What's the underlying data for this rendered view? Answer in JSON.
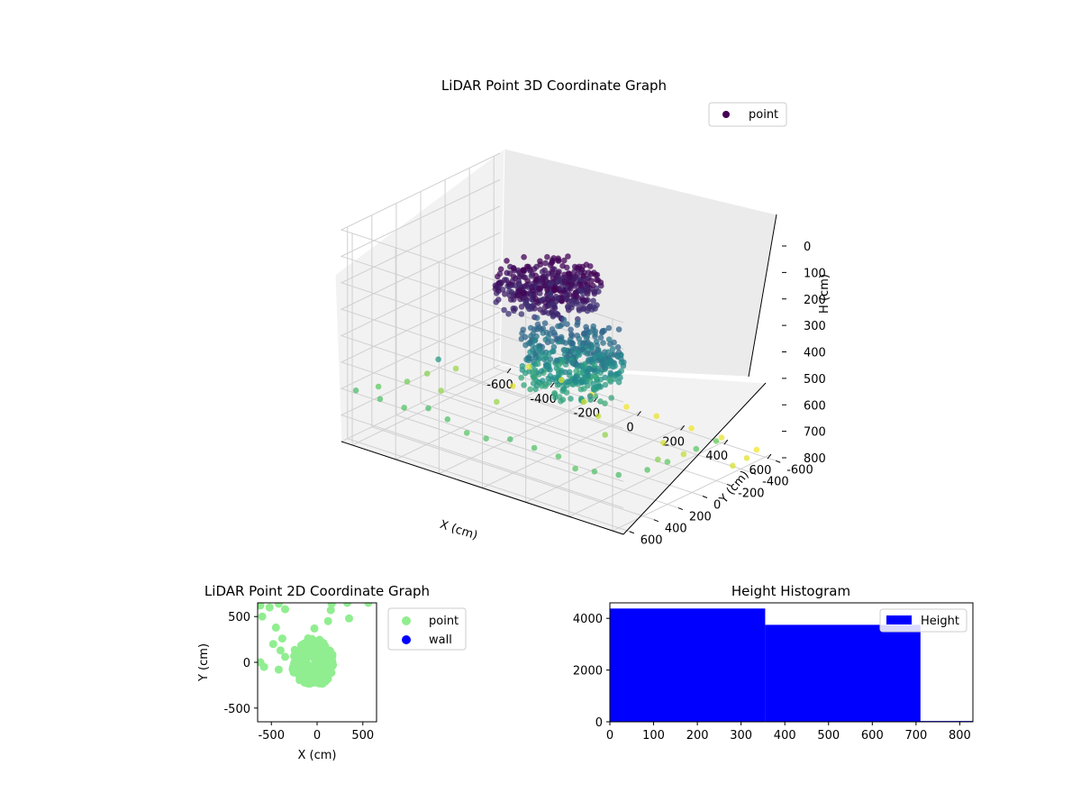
{
  "colors": {
    "viridis_purple": "#440154",
    "point_green": "#90ee90",
    "wall_blue": "#0000ff",
    "hist_blue": "#0000ff",
    "pane": "#f2f2f2",
    "grid": "#d0d0d0"
  },
  "chart_data": [
    {
      "type": "scatter",
      "title": "LiDAR Point 3D Coordinate Graph",
      "xlabel": "X (cm)",
      "ylabel": "Y (cm)",
      "zlabel": "H (cm)",
      "xlim": [
        -650,
        650
      ],
      "ylim": [
        -650,
        650
      ],
      "zlim": [
        800,
        0
      ],
      "x_ticks": [
        -600,
        -400,
        -200,
        0,
        200,
        400,
        600
      ],
      "y_ticks": [
        -600,
        -400,
        -200,
        0,
        200,
        400,
        600
      ],
      "z_ticks": [
        0,
        100,
        200,
        300,
        400,
        500,
        600,
        700,
        800
      ],
      "colormap": "viridis",
      "grid": true,
      "legend": {
        "position": "top-right",
        "entries": [
          "point"
        ]
      },
      "series": [
        {
          "name": "point",
          "clusters": [
            {
              "x": [
                -250,
                150
              ],
              "y": [
                -250,
                300
              ],
              "h": [
                150,
                250
              ]
            },
            {
              "x": [
                -150,
                250
              ],
              "y": [
                -250,
                250
              ],
              "h": [
                350,
                550
              ]
            }
          ],
          "scattered_points": [
            {
              "x": -600,
              "y": 620,
              "h": 600
            },
            {
              "x": -500,
              "y": 600,
              "h": 610
            },
            {
              "x": -400,
              "y": 580,
              "h": 620
            },
            {
              "x": -300,
              "y": 560,
              "h": 600
            },
            {
              "x": -200,
              "y": 580,
              "h": 610
            },
            {
              "x": -100,
              "y": 600,
              "h": 630
            },
            {
              "x": 0,
              "y": 620,
              "h": 620
            },
            {
              "x": 100,
              "y": 600,
              "h": 600
            },
            {
              "x": 200,
              "y": 580,
              "h": 610
            },
            {
              "x": 300,
              "y": 560,
              "h": 620
            },
            {
              "x": 400,
              "y": 600,
              "h": 630
            },
            {
              "x": 500,
              "y": 620,
              "h": 610
            },
            {
              "x": 600,
              "y": 600,
              "h": 600
            },
            {
              "x": 620,
              "y": 400,
              "h": 620
            },
            {
              "x": 600,
              "y": 200,
              "h": 640
            },
            {
              "x": 620,
              "y": 0,
              "h": 630
            },
            {
              "x": 600,
              "y": -200,
              "h": 650
            },
            {
              "x": -620,
              "y": 400,
              "h": 640
            },
            {
              "x": -600,
              "y": 200,
              "h": 660
            },
            {
              "x": -620,
              "y": 0,
              "h": 680
            },
            {
              "x": -600,
              "y": -200,
              "h": 700
            },
            {
              "x": -500,
              "y": -620,
              "h": 760
            },
            {
              "x": -350,
              "y": -620,
              "h": 770
            },
            {
              "x": -200,
              "y": -600,
              "h": 780
            },
            {
              "x": -50,
              "y": -620,
              "h": 790
            },
            {
              "x": 100,
              "y": -600,
              "h": 780
            },
            {
              "x": 250,
              "y": -620,
              "h": 790
            },
            {
              "x": 400,
              "y": -600,
              "h": 780
            },
            {
              "x": 550,
              "y": -620,
              "h": 790
            },
            {
              "x": 600,
              "y": -450,
              "h": 770
            },
            {
              "x": 620,
              "y": -300,
              "h": 760
            },
            {
              "x": -400,
              "y": 300,
              "h": 500
            },
            {
              "x": 300,
              "y": 300,
              "h": 450
            },
            {
              "x": -300,
              "y": 0,
              "h": 700
            },
            {
              "x": 200,
              "y": 0,
              "h": 690
            },
            {
              "x": 0,
              "y": -300,
              "h": 740
            },
            {
              "x": -150,
              "y": -450,
              "h": 760
            },
            {
              "x": 300,
              "y": -300,
              "h": 760
            },
            {
              "x": 450,
              "y": -200,
              "h": 740
            },
            {
              "x": -450,
              "y": -400,
              "h": 770
            },
            {
              "x": 500,
              "y": 100,
              "h": 680
            },
            {
              "x": -500,
              "y": 100,
              "h": 690
            }
          ]
        }
      ]
    },
    {
      "type": "scatter",
      "title": "LiDAR Point 2D Coordinate Graph",
      "xlabel": "X (cm)",
      "ylabel": "Y (cm)",
      "xlim": [
        -650,
        650
      ],
      "ylim": [
        -650,
        650
      ],
      "x_ticks": [
        -500,
        0,
        500
      ],
      "y_ticks": [
        -500,
        0,
        500
      ],
      "legend": {
        "position": "outside-right",
        "entries": [
          "point",
          "wall"
        ]
      },
      "series": [
        {
          "name": "point",
          "cluster": {
            "cx": -50,
            "cy": 0,
            "rx": 230,
            "ry": 270
          },
          "points": [
            {
              "x": -620,
              "y": 620
            },
            {
              "x": -520,
              "y": 600
            },
            {
              "x": -420,
              "y": 640
            },
            {
              "x": -350,
              "y": 580
            },
            {
              "x": -600,
              "y": 500
            },
            {
              "x": -450,
              "y": 380
            },
            {
              "x": -380,
              "y": 260
            },
            {
              "x": -480,
              "y": 200
            },
            {
              "x": -400,
              "y": 130
            },
            {
              "x": -350,
              "y": 60
            },
            {
              "x": -620,
              "y": 0
            },
            {
              "x": -580,
              "y": -50
            },
            {
              "x": -420,
              "y": -80
            },
            {
              "x": -30,
              "y": 370
            },
            {
              "x": 150,
              "y": 570
            },
            {
              "x": 160,
              "y": 640
            },
            {
              "x": 330,
              "y": 650
            },
            {
              "x": 560,
              "y": 650
            },
            {
              "x": 350,
              "y": 480
            },
            {
              "x": 120,
              "y": 450
            }
          ]
        },
        {
          "name": "wall",
          "points": []
        }
      ]
    },
    {
      "type": "bar",
      "title": "Height Histogram",
      "xlabel": "",
      "ylabel": "",
      "xlim": [
        0,
        830
      ],
      "ylim": [
        0,
        4600
      ],
      "x_ticks": [
        0,
        100,
        200,
        300,
        400,
        500,
        600,
        700,
        800
      ],
      "y_ticks": [
        0,
        2000,
        4000
      ],
      "legend": {
        "position": "top-right",
        "entries": [
          "Height"
        ]
      },
      "series": [
        {
          "name": "Height",
          "bins": [
            {
              "start": 0,
              "end": 355,
              "count": 4380
            },
            {
              "start": 355,
              "end": 710,
              "count": 3750
            },
            {
              "start": 710,
              "end": 830,
              "count": 30
            }
          ]
        }
      ]
    }
  ]
}
